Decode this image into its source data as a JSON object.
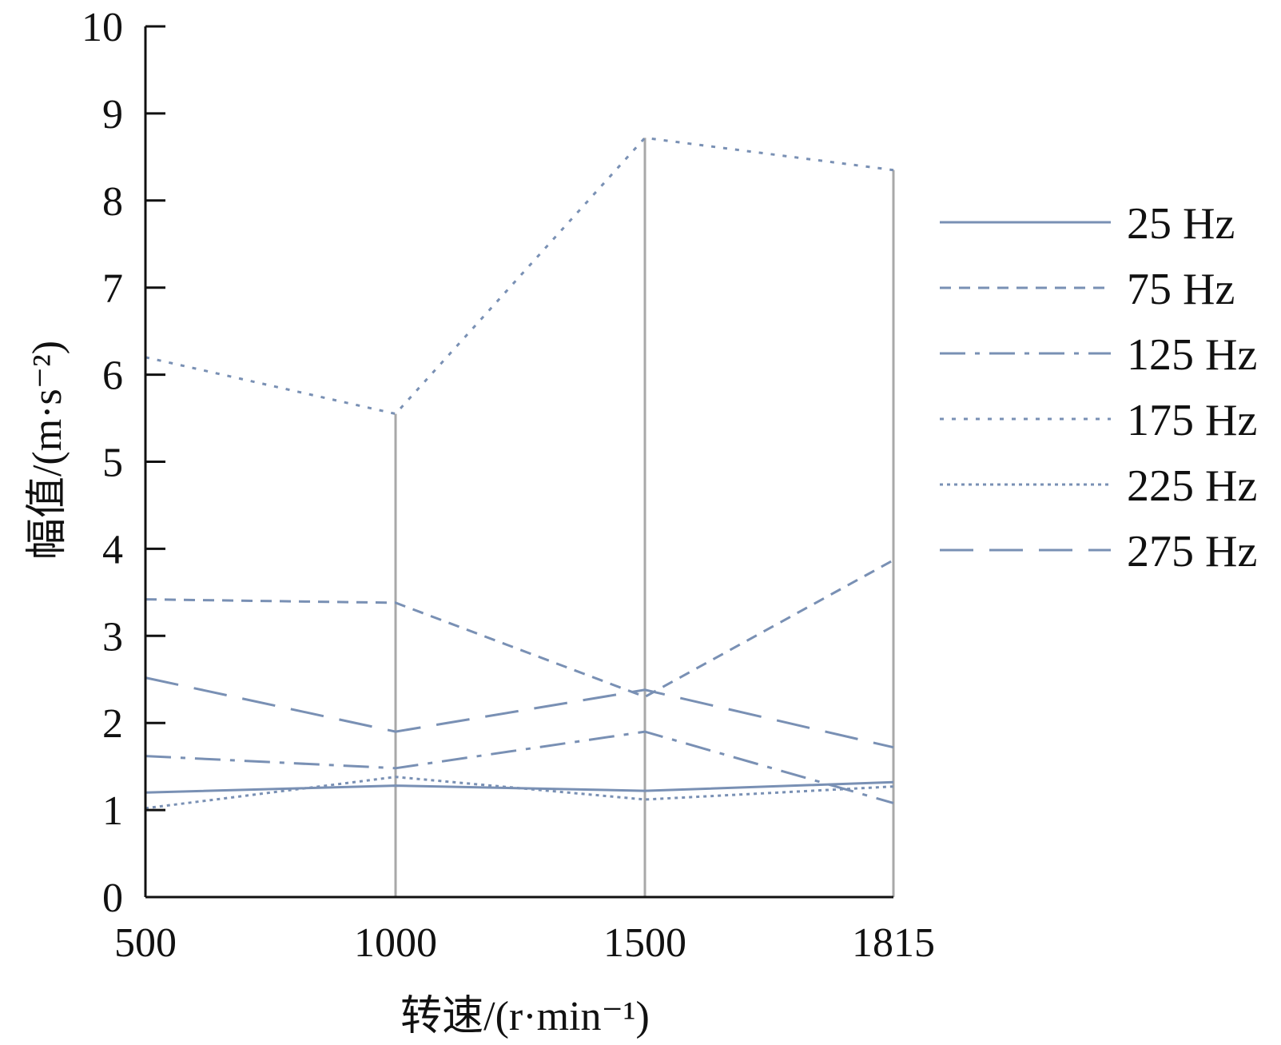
{
  "chart_data": {
    "type": "line",
    "xlabel": "转速/(r·min⁻¹)",
    "ylabel": "幅值/(m·s⁻²)",
    "categories": [
      "500",
      "1000",
      "1500",
      "1815"
    ],
    "x_ticks": [
      "500",
      "1000",
      "1500",
      "1815"
    ],
    "y_ticks": [
      "0",
      "1",
      "2",
      "3",
      "4",
      "5",
      "6",
      "7",
      "8",
      "9",
      "10"
    ],
    "ylim": [
      0,
      10
    ],
    "grid": "vertical lines at each category",
    "legend_position": "right",
    "colors": {
      "series": "#7990b4",
      "axis": "#111111",
      "grid": "#a8a8a8"
    },
    "series": [
      {
        "name": "25 Hz",
        "values": [
          1.2,
          1.28,
          1.22,
          1.32
        ],
        "dash": "solid"
      },
      {
        "name": "75 Hz",
        "values": [
          3.42,
          3.38,
          2.3,
          3.87
        ],
        "dash": "short-dash"
      },
      {
        "name": "125 Hz",
        "values": [
          1.62,
          1.48,
          1.9,
          1.08
        ],
        "dash": "dash-dot"
      },
      {
        "name": "175 Hz",
        "values": [
          6.2,
          5.55,
          8.72,
          8.35
        ],
        "dash": "dot"
      },
      {
        "name": "225 Hz",
        "values": [
          1.02,
          1.38,
          1.12,
          1.27
        ],
        "dash": "fine-dot"
      },
      {
        "name": "275 Hz",
        "values": [
          2.52,
          1.9,
          2.38,
          1.72
        ],
        "dash": "long-dash"
      }
    ]
  }
}
